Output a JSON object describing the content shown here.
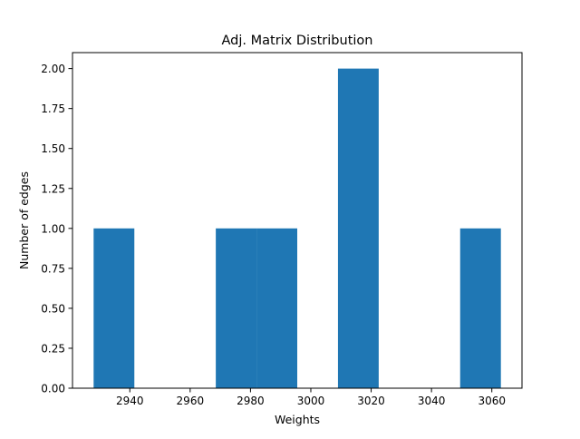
{
  "chart_data": {
    "type": "bar",
    "title": "Adj. Matrix Distribution",
    "xlabel": "Weights",
    "ylabel": "Number of edges",
    "xlim": [
      2921,
      3070
    ],
    "ylim": [
      0,
      2.1
    ],
    "xticks": [
      "2940",
      "2960",
      "2980",
      "3000",
      "3020",
      "3040",
      "3060"
    ],
    "xtick_values": [
      2940,
      2960,
      2980,
      3000,
      3020,
      3040,
      3060
    ],
    "yticks": [
      "0.00",
      "0.25",
      "0.50",
      "0.75",
      "1.00",
      "1.25",
      "1.50",
      "1.75",
      "2.00"
    ],
    "ytick_values": [
      0,
      0.25,
      0.5,
      0.75,
      1.0,
      1.25,
      1.5,
      1.75,
      2.0
    ],
    "bins": [
      {
        "x0": 2928.0,
        "x1": 2941.5,
        "value": 1
      },
      {
        "x0": 2941.5,
        "x1": 2955.0,
        "value": 0
      },
      {
        "x0": 2955.0,
        "x1": 2968.5,
        "value": 0
      },
      {
        "x0": 2968.5,
        "x1": 2982.0,
        "value": 1
      },
      {
        "x0": 2982.0,
        "x1": 2995.5,
        "value": 1
      },
      {
        "x0": 2995.5,
        "x1": 3009.0,
        "value": 0
      },
      {
        "x0": 3009.0,
        "x1": 3022.5,
        "value": 2
      },
      {
        "x0": 3022.5,
        "x1": 3036.0,
        "value": 0
      },
      {
        "x0": 3036.0,
        "x1": 3049.5,
        "value": 0
      },
      {
        "x0": 3049.5,
        "x1": 3063.0,
        "value": 1
      }
    ],
    "bar_color": "#1f77b4",
    "grid": false,
    "legend": "none"
  }
}
